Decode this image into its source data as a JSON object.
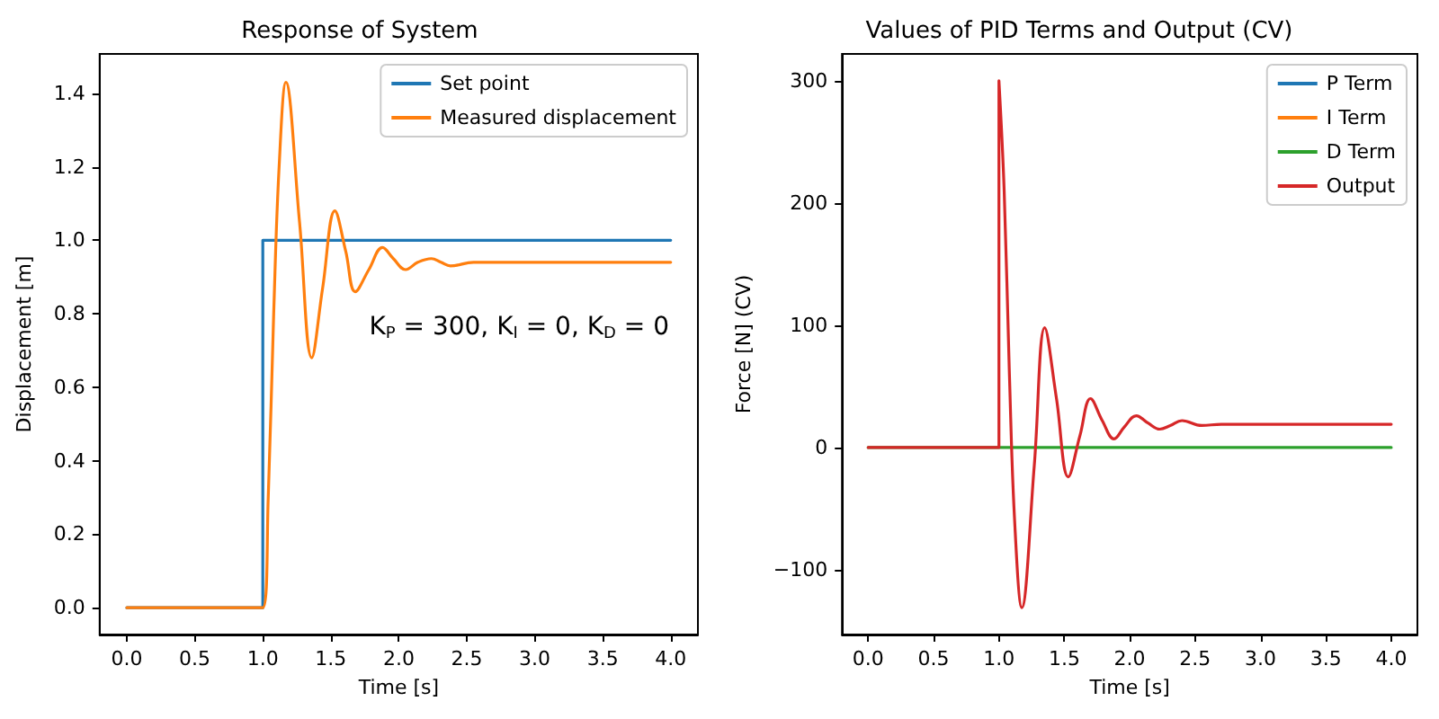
{
  "chart_data": [
    {
      "type": "line",
      "title": "Response of System",
      "xlabel": "Time [s]",
      "ylabel": "Displacement [m]",
      "xlim": [
        -0.2,
        4.2
      ],
      "ylim": [
        -0.073,
        1.507
      ],
      "xticks": [
        {
          "value": 0,
          "label": "0.0"
        },
        {
          "value": 0.5,
          "label": "0.5"
        },
        {
          "value": 1,
          "label": "1.0"
        },
        {
          "value": 1.5,
          "label": "1.5"
        },
        {
          "value": 2,
          "label": "2.0"
        },
        {
          "value": 2.5,
          "label": "2.5"
        },
        {
          "value": 3,
          "label": "3.0"
        },
        {
          "value": 3.5,
          "label": "3.5"
        },
        {
          "value": 4,
          "label": "4.0"
        }
      ],
      "yticks": [
        {
          "value": 0,
          "label": "0.0"
        },
        {
          "value": 0.2,
          "label": "0.2"
        },
        {
          "value": 0.4,
          "label": "0.4"
        },
        {
          "value": 0.6,
          "label": "0.6"
        },
        {
          "value": 0.8,
          "label": "0.8"
        },
        {
          "value": 1,
          "label": "1.0"
        },
        {
          "value": 1.2,
          "label": "1.2"
        },
        {
          "value": 1.4,
          "label": "1.4"
        }
      ],
      "grid": false,
      "legend": "top right",
      "marker": "none",
      "line_style": "solid",
      "annotations": [
        "K$_{P}$ = 300, K$_{I}$ = 0, K$_{D}$ = 0"
      ],
      "series": [
        {
          "name": "Set point",
          "color": "#1f77b4",
          "x": [
            0,
            1,
            1,
            4
          ],
          "values": [
            0,
            0,
            1,
            1
          ]
        },
        {
          "name": "Measured displacement",
          "color": "#ff7f0e",
          "x": [
            0,
            1,
            1.04,
            1.08,
            1.12,
            1.17,
            1.27,
            1.36,
            1.44,
            1.53,
            1.61,
            1.68,
            1.78,
            1.88,
            1.96,
            2.05,
            2.14,
            2.24,
            2.31,
            2.38,
            2.55,
            2.7,
            3,
            4
          ],
          "values": [
            0,
            0,
            0.3,
            0.8,
            1.2,
            1.43,
            1.05,
            0.68,
            0.87,
            1.08,
            0.97,
            0.86,
            0.92,
            0.98,
            0.95,
            0.92,
            0.94,
            0.95,
            0.94,
            0.93,
            0.94,
            0.94,
            0.94,
            0.94
          ]
        }
      ]
    },
    {
      "type": "line",
      "title": "Values of PID Terms and Output (CV)",
      "xlabel": "Time [s]",
      "ylabel": "Force [N] (CV)",
      "xlim": [
        -0.2,
        4.2
      ],
      "ylim": [
        -153,
        322
      ],
      "xticks": [
        {
          "value": 0,
          "label": "0.0"
        },
        {
          "value": 0.5,
          "label": "0.5"
        },
        {
          "value": 1,
          "label": "1.0"
        },
        {
          "value": 1.5,
          "label": "1.5"
        },
        {
          "value": 2,
          "label": "2.0"
        },
        {
          "value": 2.5,
          "label": "2.5"
        },
        {
          "value": 3,
          "label": "3.0"
        },
        {
          "value": 3.5,
          "label": "3.5"
        },
        {
          "value": 4,
          "label": "4.0"
        }
      ],
      "yticks": [
        {
          "value": -100,
          "label": "−100"
        },
        0,
        100,
        200,
        300
      ],
      "grid": false,
      "legend": "top right",
      "marker": "none",
      "line_style": "solid",
      "series": [
        {
          "name": "P Term",
          "color": "#1f77b4"
        },
        {
          "name": "I Term",
          "color": "#ff7f0e"
        },
        {
          "name": "D Term",
          "color": "#2ca02c",
          "x": [
            0,
            4
          ],
          "values": [
            0,
            0
          ]
        },
        {
          "name": "Output",
          "color": "#d62728",
          "x": [
            0,
            1,
            1,
            1.04,
            1.08,
            1.12,
            1.175,
            1.27,
            1.35,
            1.44,
            1.53,
            1.62,
            1.7,
            1.79,
            1.88,
            1.96,
            2.05,
            2.14,
            2.23,
            2.31,
            2.4,
            2.55,
            2.7,
            3,
            4
          ],
          "values": [
            0,
            0,
            300,
            210,
            60,
            -60,
            -131,
            -15,
            98,
            40,
            -24,
            10,
            40,
            22,
            7,
            17,
            26,
            20,
            15,
            18,
            22,
            18,
            19,
            19,
            19
          ]
        }
      ]
    }
  ]
}
